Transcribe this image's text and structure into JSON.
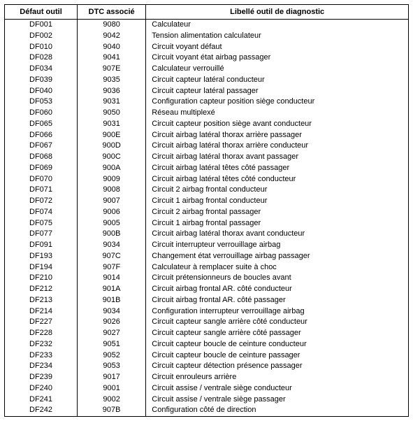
{
  "headers": {
    "defaut": "Défaut outil",
    "dtc": "DTC associé",
    "libelle": "Libellé outil de diagnostic"
  },
  "style": {
    "font_family": "Arial",
    "font_size_pt": 8,
    "header_font_size_pt": 8,
    "text_color": "#000000",
    "background_color": "#ffffff",
    "border_color": "#000000",
    "col_widths_pct": [
      18,
      17,
      65
    ],
    "col_align": [
      "center",
      "center",
      "left"
    ]
  },
  "rows": [
    {
      "defaut": "DF001",
      "dtc": "9080",
      "libelle": "Calculateur"
    },
    {
      "defaut": "DF002",
      "dtc": "9042",
      "libelle": "Tension alimentation calculateur"
    },
    {
      "defaut": "DF010",
      "dtc": "9040",
      "libelle": "Circuit voyant défaut"
    },
    {
      "defaut": "DF028",
      "dtc": "9041",
      "libelle": "Circuit voyant état airbag passager"
    },
    {
      "defaut": "DF034",
      "dtc": "907E",
      "libelle": "Calculateur verrouillé"
    },
    {
      "defaut": "DF039",
      "dtc": "9035",
      "libelle": "Circuit capteur latéral conducteur"
    },
    {
      "defaut": "DF040",
      "dtc": "9036",
      "libelle": "Circuit capteur latéral passager"
    },
    {
      "defaut": "DF053",
      "dtc": "9031",
      "libelle": "Configuration capteur position siège conducteur"
    },
    {
      "defaut": "DF060",
      "dtc": "9050",
      "libelle": "Réseau multiplexé"
    },
    {
      "defaut": "DF065",
      "dtc": "9031",
      "libelle": "Circuit capteur position siège avant conducteur"
    },
    {
      "defaut": "DF066",
      "dtc": "900E",
      "libelle": "Circuit airbag latéral thorax arrière passager"
    },
    {
      "defaut": "DF067",
      "dtc": "900D",
      "libelle": "Circuit airbag latéral thorax arrière conducteur"
    },
    {
      "defaut": "DF068",
      "dtc": "900C",
      "libelle": "Circuit airbag latéral thorax avant passager"
    },
    {
      "defaut": "DF069",
      "dtc": "900A",
      "libelle": "Circuit airbag latéral têtes côté passager"
    },
    {
      "defaut": "DF070",
      "dtc": "9009",
      "libelle": "Circuit airbag latéral têtes côté conducteur"
    },
    {
      "defaut": "DF071",
      "dtc": "9008",
      "libelle": "Circuit 2 airbag frontal conducteur"
    },
    {
      "defaut": "DF072",
      "dtc": "9007",
      "libelle": "Circuit 1 airbag frontal conducteur"
    },
    {
      "defaut": "DF074",
      "dtc": "9006",
      "libelle": "Circuit 2 airbag frontal passager"
    },
    {
      "defaut": "DF075",
      "dtc": "9005",
      "libelle": "Circuit 1 airbag frontal passager"
    },
    {
      "defaut": "DF077",
      "dtc": "900B",
      "libelle": "Circuit airbag latéral thorax avant conducteur"
    },
    {
      "defaut": "DF091",
      "dtc": "9034",
      "libelle": "Circuit interrupteur verrouillage airbag"
    },
    {
      "defaut": "DF193",
      "dtc": "907C",
      "libelle": "Changement état verrouillage airbag passager"
    },
    {
      "defaut": "DF194",
      "dtc": "907F",
      "libelle": "Calculateur à remplacer suite à choc"
    },
    {
      "defaut": "DF210",
      "dtc": "9014",
      "libelle": "Circuit prétensionneurs de boucles avant"
    },
    {
      "defaut": "DF212",
      "dtc": "901A",
      "libelle": "Circuit airbag frontal AR. côté conducteur"
    },
    {
      "defaut": "DF213",
      "dtc": "901B",
      "libelle": "Circuit airbag frontal AR. côté passager"
    },
    {
      "defaut": "DF214",
      "dtc": "9034",
      "libelle": "Configuration interrupteur verrouillage airbag"
    },
    {
      "defaut": "DF227",
      "dtc": "9026",
      "libelle": "Circuit capteur sangle arrière côté conducteur"
    },
    {
      "defaut": "DF228",
      "dtc": "9027",
      "libelle": "Circuit capteur sangle arrière côté passager"
    },
    {
      "defaut": "DF232",
      "dtc": "9051",
      "libelle": "Circuit capteur boucle de ceinture conducteur"
    },
    {
      "defaut": "DF233",
      "dtc": "9052",
      "libelle": "Circuit capteur boucle de ceinture passager"
    },
    {
      "defaut": "DF234",
      "dtc": "9053",
      "libelle": "Circuit capteur détection présence passager"
    },
    {
      "defaut": "DF239",
      "dtc": "9017",
      "libelle": "Circuit enrouleurs arrière"
    },
    {
      "defaut": "DF240",
      "dtc": "9001",
      "libelle": "Circuit assise / ventrale siège conducteur"
    },
    {
      "defaut": "DF241",
      "dtc": "9002",
      "libelle": "Circuit assise / ventrale siège passager"
    },
    {
      "defaut": "DF242",
      "dtc": "907B",
      "libelle": "Configuration côté de direction"
    }
  ]
}
